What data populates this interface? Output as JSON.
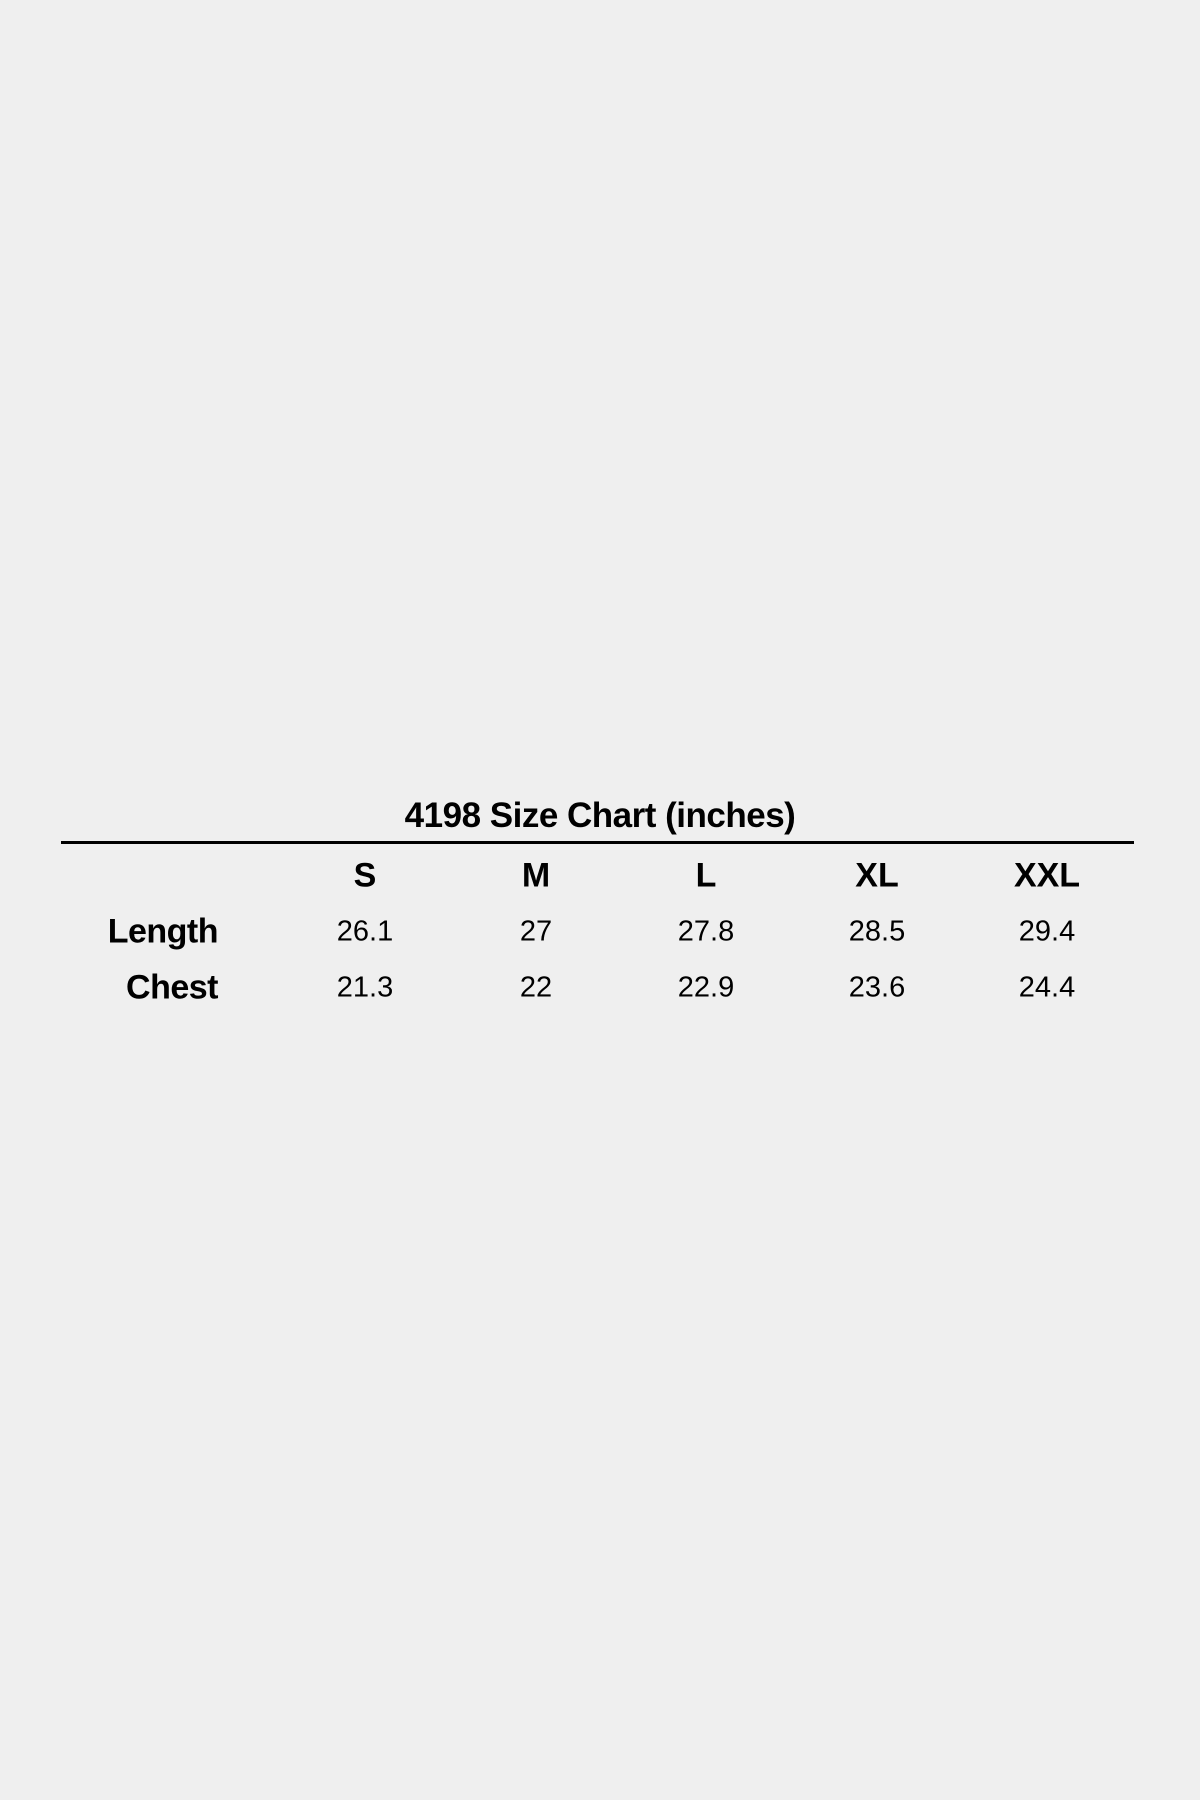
{
  "title": "4198 Size Chart (inches)",
  "columns": [
    "S",
    "M",
    "L",
    "XL",
    "XXL"
  ],
  "rows": [
    {
      "label": "Length",
      "values": [
        "26.1",
        "27",
        "27.8",
        "28.5",
        "29.4"
      ]
    },
    {
      "label": "Chest",
      "values": [
        "21.3",
        "22",
        "22.9",
        "23.6",
        "24.4"
      ]
    }
  ]
}
